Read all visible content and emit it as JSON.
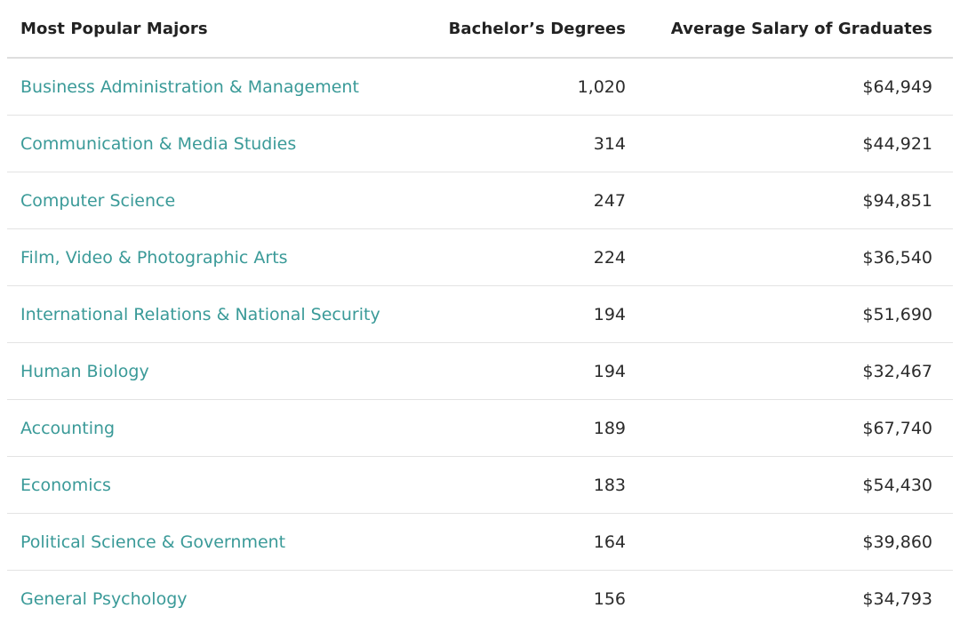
{
  "table": {
    "headers": {
      "major": "Most Popular Majors",
      "degrees": "Bachelor’s Degrees",
      "salary": "Average Salary of Graduates"
    },
    "rows": [
      {
        "major": "Business Administration & Management",
        "degrees": "1,020",
        "salary": "$64,949"
      },
      {
        "major": "Communication & Media Studies",
        "degrees": "314",
        "salary": "$44,921"
      },
      {
        "major": "Computer Science",
        "degrees": "247",
        "salary": "$94,851"
      },
      {
        "major": "Film, Video & Photographic Arts",
        "degrees": "224",
        "salary": "$36,540"
      },
      {
        "major": "International Relations & National Security",
        "degrees": "194",
        "salary": "$51,690"
      },
      {
        "major": "Human Biology",
        "degrees": "194",
        "salary": "$32,467"
      },
      {
        "major": "Accounting",
        "degrees": "189",
        "salary": "$67,740"
      },
      {
        "major": "Economics",
        "degrees": "183",
        "salary": "$54,430"
      },
      {
        "major": "Political Science & Government",
        "degrees": "164",
        "salary": "$39,860"
      },
      {
        "major": "General Psychology",
        "degrees": "156",
        "salary": "$34,793"
      }
    ]
  },
  "colors": {
    "link": "#3a9a98",
    "text": "#2b2b2b",
    "divider": "#e3e3e3"
  }
}
